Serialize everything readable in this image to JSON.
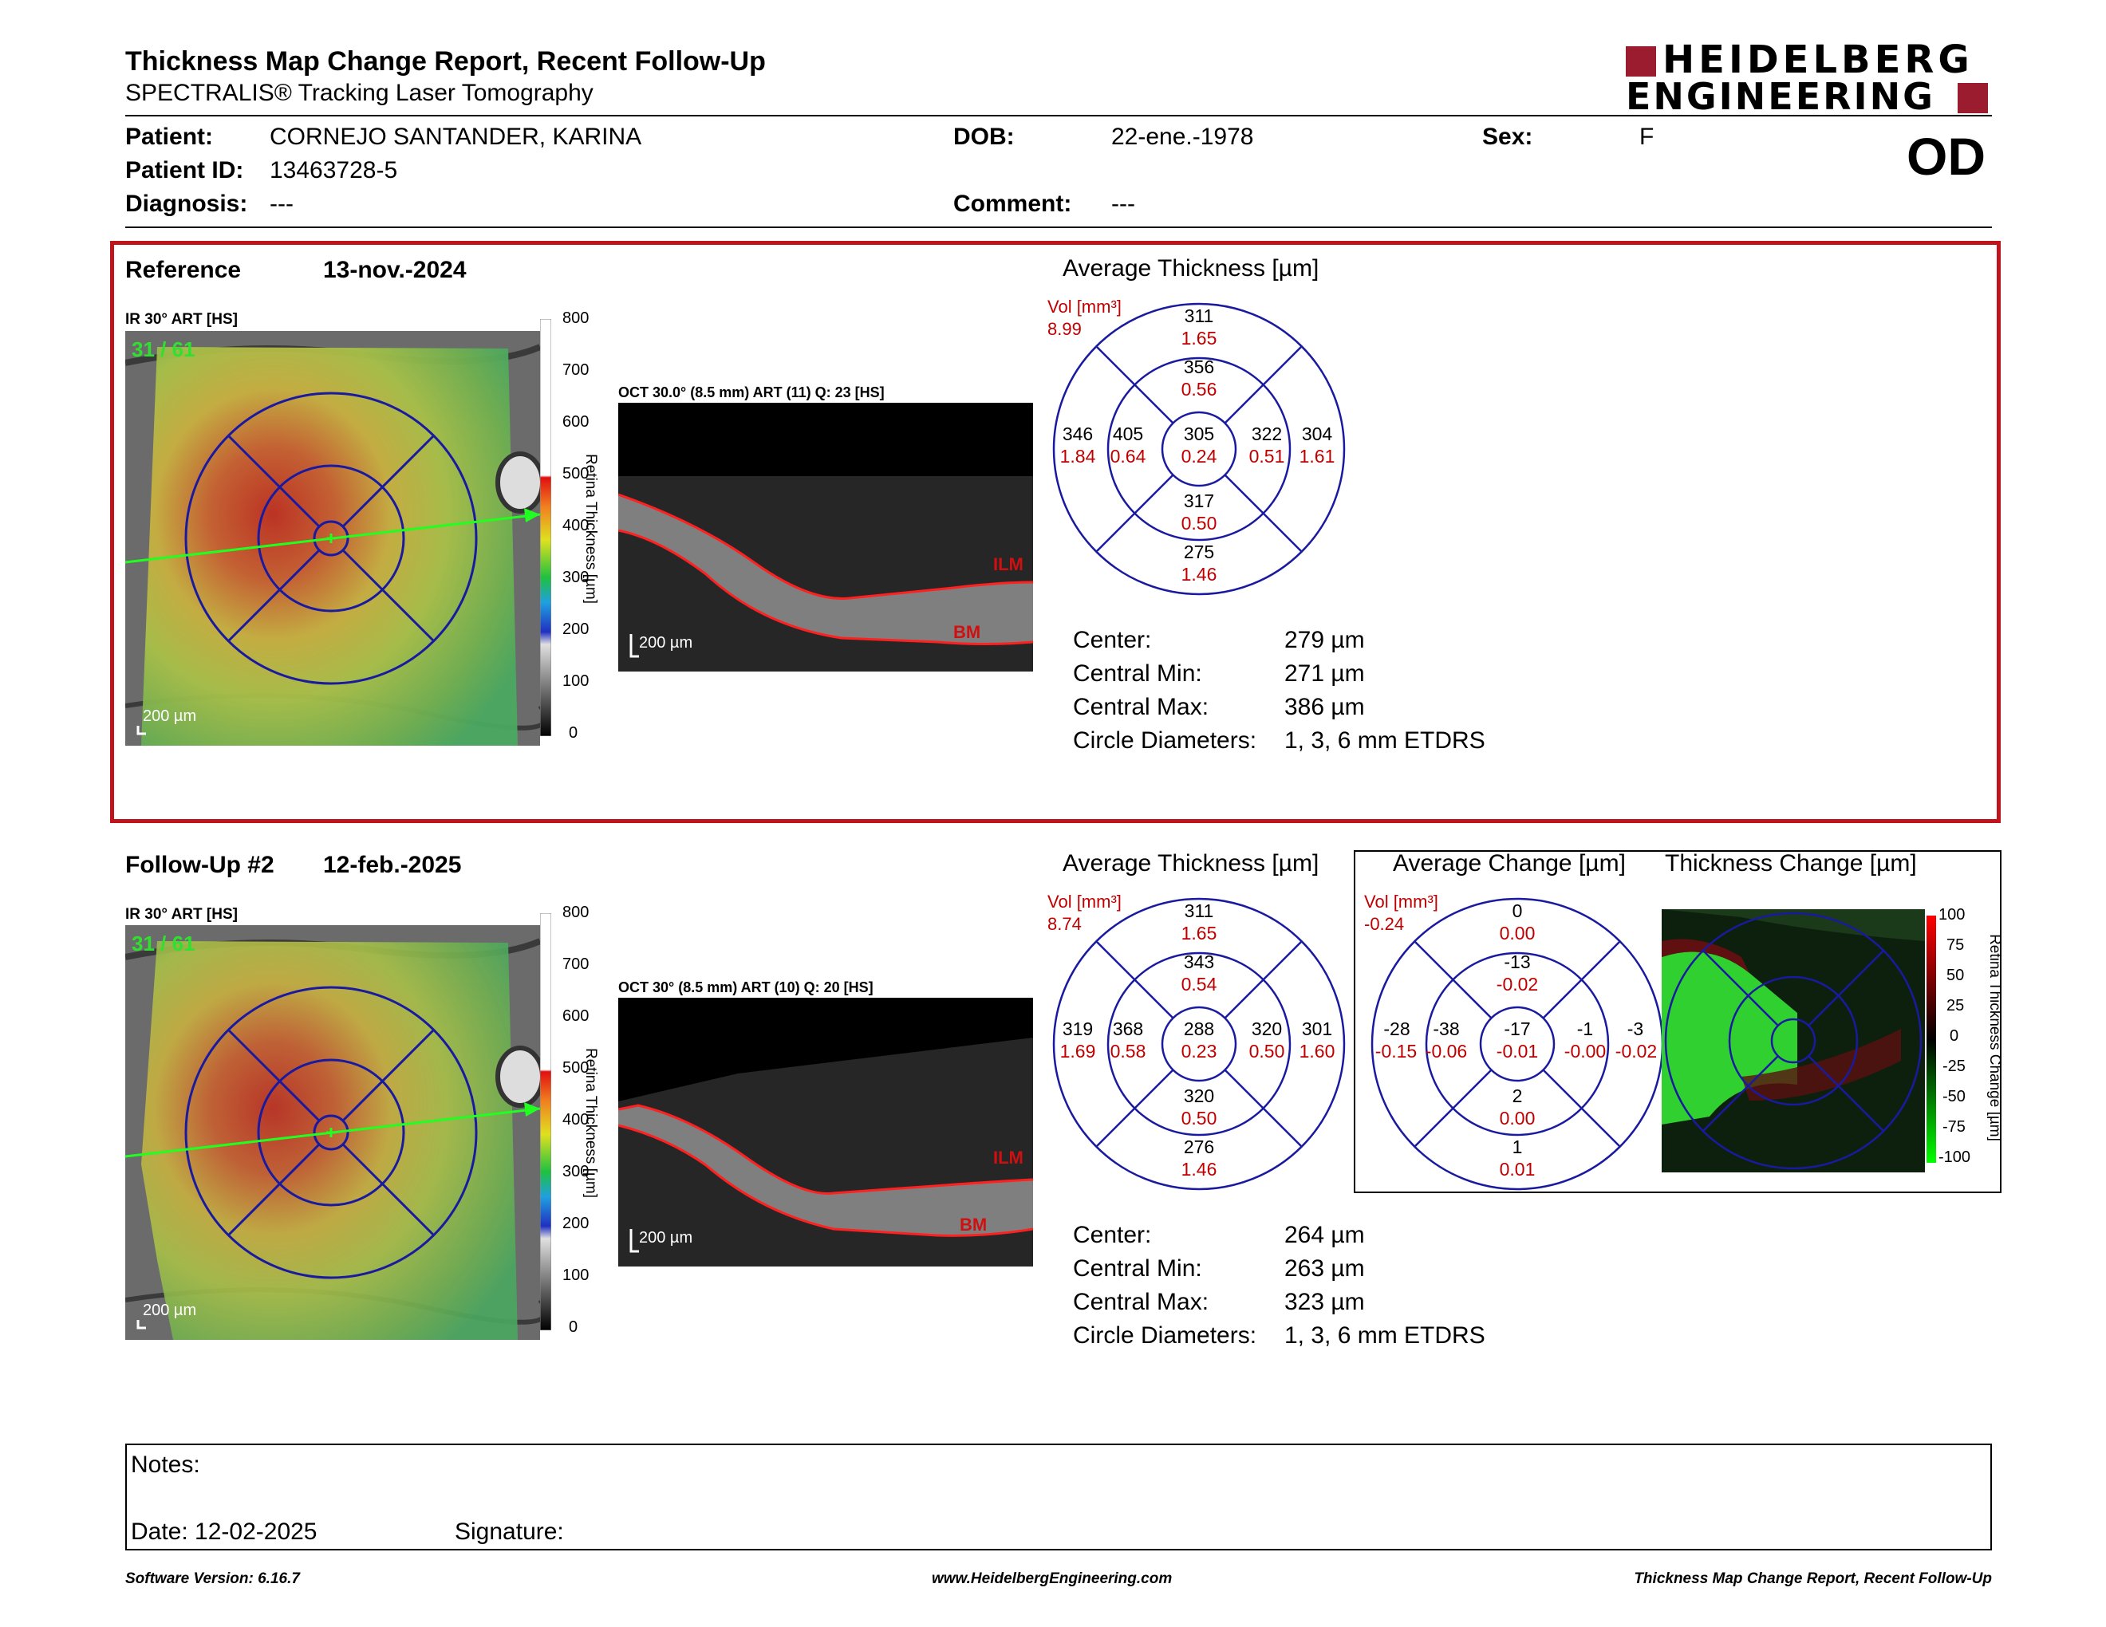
{
  "header": {
    "title": "Thickness Map Change Report, Recent Follow-Up",
    "subtitle": "SPECTRALIS® Tracking Laser Tomography",
    "logo_line1": "HEIDELBERG",
    "logo_line2": "ENGINEERING",
    "eye": "OD"
  },
  "patient": {
    "patient_label": "Patient:",
    "patient_value": "CORNEJO SANTANDER, KARINA",
    "id_label": "Patient ID:",
    "id_value": "13463728-5",
    "diagnosis_label": "Diagnosis:",
    "diagnosis_value": "---",
    "dob_label": "DOB:",
    "dob_value": "22-ene.-1978",
    "comment_label": "Comment:",
    "comment_value": "---",
    "sex_label": "Sex:",
    "sex_value": "F"
  },
  "reference": {
    "label": "Reference",
    "date": "13-nov.-2024",
    "ir_label": "IR 30° ART [HS]",
    "ir_counter": "31 / 61",
    "scale_bar": "200 µm",
    "oct_label": "OCT 30.0° (8.5 mm) ART (11) Q: 23 [HS]",
    "oct_scale": "200 µm",
    "ilm": "ILM",
    "bm": "BM",
    "colorbar_ticks": [
      "800",
      "700",
      "600",
      "500",
      "400",
      "300",
      "200",
      "100",
      "0"
    ],
    "colorbar_title": "Retina Thickness [µm]",
    "avg_title": "Average Thickness [µm]",
    "vol_label": "Vol [mm³]",
    "vol_total": "8.99",
    "etdrs": {
      "center": [
        "305",
        "0.24"
      ],
      "inner_sup": [
        "356",
        "0.56"
      ],
      "inner_temp": [
        "405",
        "0.64"
      ],
      "inner_nas": [
        "322",
        "0.51"
      ],
      "inner_inf": [
        "317",
        "0.50"
      ],
      "outer_sup": [
        "311",
        "1.65"
      ],
      "outer_temp": [
        "346",
        "1.84"
      ],
      "outer_nas": [
        "304",
        "1.61"
      ],
      "outer_inf": [
        "275",
        "1.46"
      ]
    },
    "stats": [
      {
        "label": "Center:",
        "value": "279 µm"
      },
      {
        "label": "Central Min:",
        "value": "271 µm"
      },
      {
        "label": "Central Max:",
        "value": "386 µm"
      },
      {
        "label": "Circle Diameters:",
        "value": "1, 3, 6 mm ETDRS"
      }
    ]
  },
  "followup": {
    "label": "Follow-Up #2",
    "date": "12-feb.-2025",
    "ir_label": "IR 30° ART [HS]",
    "ir_counter": "31 / 61",
    "scale_bar": "200 µm",
    "oct_label": "OCT 30° (8.5 mm) ART (10) Q: 20 [HS]",
    "oct_scale": "200 µm",
    "ilm": "ILM",
    "bm": "BM",
    "colorbar_ticks": [
      "800",
      "700",
      "600",
      "500",
      "400",
      "300",
      "200",
      "100",
      "0"
    ],
    "colorbar_title": "Retina Thickness [µm]",
    "avg_title": "Average Thickness [µm]",
    "vol_label": "Vol [mm³]",
    "vol_total": "8.74",
    "etdrs": {
      "center": [
        "288",
        "0.23"
      ],
      "inner_sup": [
        "343",
        "0.54"
      ],
      "inner_temp": [
        "368",
        "0.58"
      ],
      "inner_nas": [
        "320",
        "0.50"
      ],
      "inner_inf": [
        "320",
        "0.50"
      ],
      "outer_sup": [
        "311",
        "1.65"
      ],
      "outer_temp": [
        "319",
        "1.69"
      ],
      "outer_nas": [
        "301",
        "1.60"
      ],
      "outer_inf": [
        "276",
        "1.46"
      ]
    },
    "stats": [
      {
        "label": "Center:",
        "value": "264 µm"
      },
      {
        "label": "Central Min:",
        "value": "263 µm"
      },
      {
        "label": "Central Max:",
        "value": "323 µm"
      },
      {
        "label": "Circle Diameters:",
        "value": "1, 3, 6 mm ETDRS"
      }
    ],
    "change_title": "Average Change [µm]",
    "change_vol_label": "Vol [mm³]",
    "change_vol_total": "-0.24",
    "change_etdrs": {
      "center": [
        "-17",
        "-0.01"
      ],
      "inner_sup": [
        "-13",
        "-0.02"
      ],
      "inner_temp": [
        "-38",
        "-0.06"
      ],
      "inner_nas": [
        "-1",
        "-0.00"
      ],
      "inner_inf": [
        "2",
        "0.00"
      ],
      "outer_sup": [
        "0",
        "0.00"
      ],
      "outer_temp": [
        "-28",
        "-0.15"
      ],
      "outer_nas": [
        "-3",
        "-0.02"
      ],
      "outer_inf": [
        "1",
        "0.01"
      ]
    },
    "thickness_change_title": "Thickness Change [µm]",
    "change_colorbar_ticks": [
      "100",
      "75",
      "50",
      "25",
      "0",
      "-25",
      "-50",
      "-75",
      "-100"
    ],
    "change_colorbar_title": "Retina Thickness Change [µm]"
  },
  "notes": {
    "notes_label": "Notes:",
    "date_label": "Date: 12-02-2025",
    "signature_label": "Signature:"
  },
  "footer": {
    "software": "Software Version: 6.16.7",
    "website": "www.HeidelbergEngineering.com",
    "report_name": "Thickness Map Change Report, Recent Follow-Up"
  },
  "colors": {
    "brand": "#9b1c2e",
    "frame_red": "#c0141c",
    "etdrs_blue": "#1a1aa0",
    "value_red": "#c00000"
  }
}
